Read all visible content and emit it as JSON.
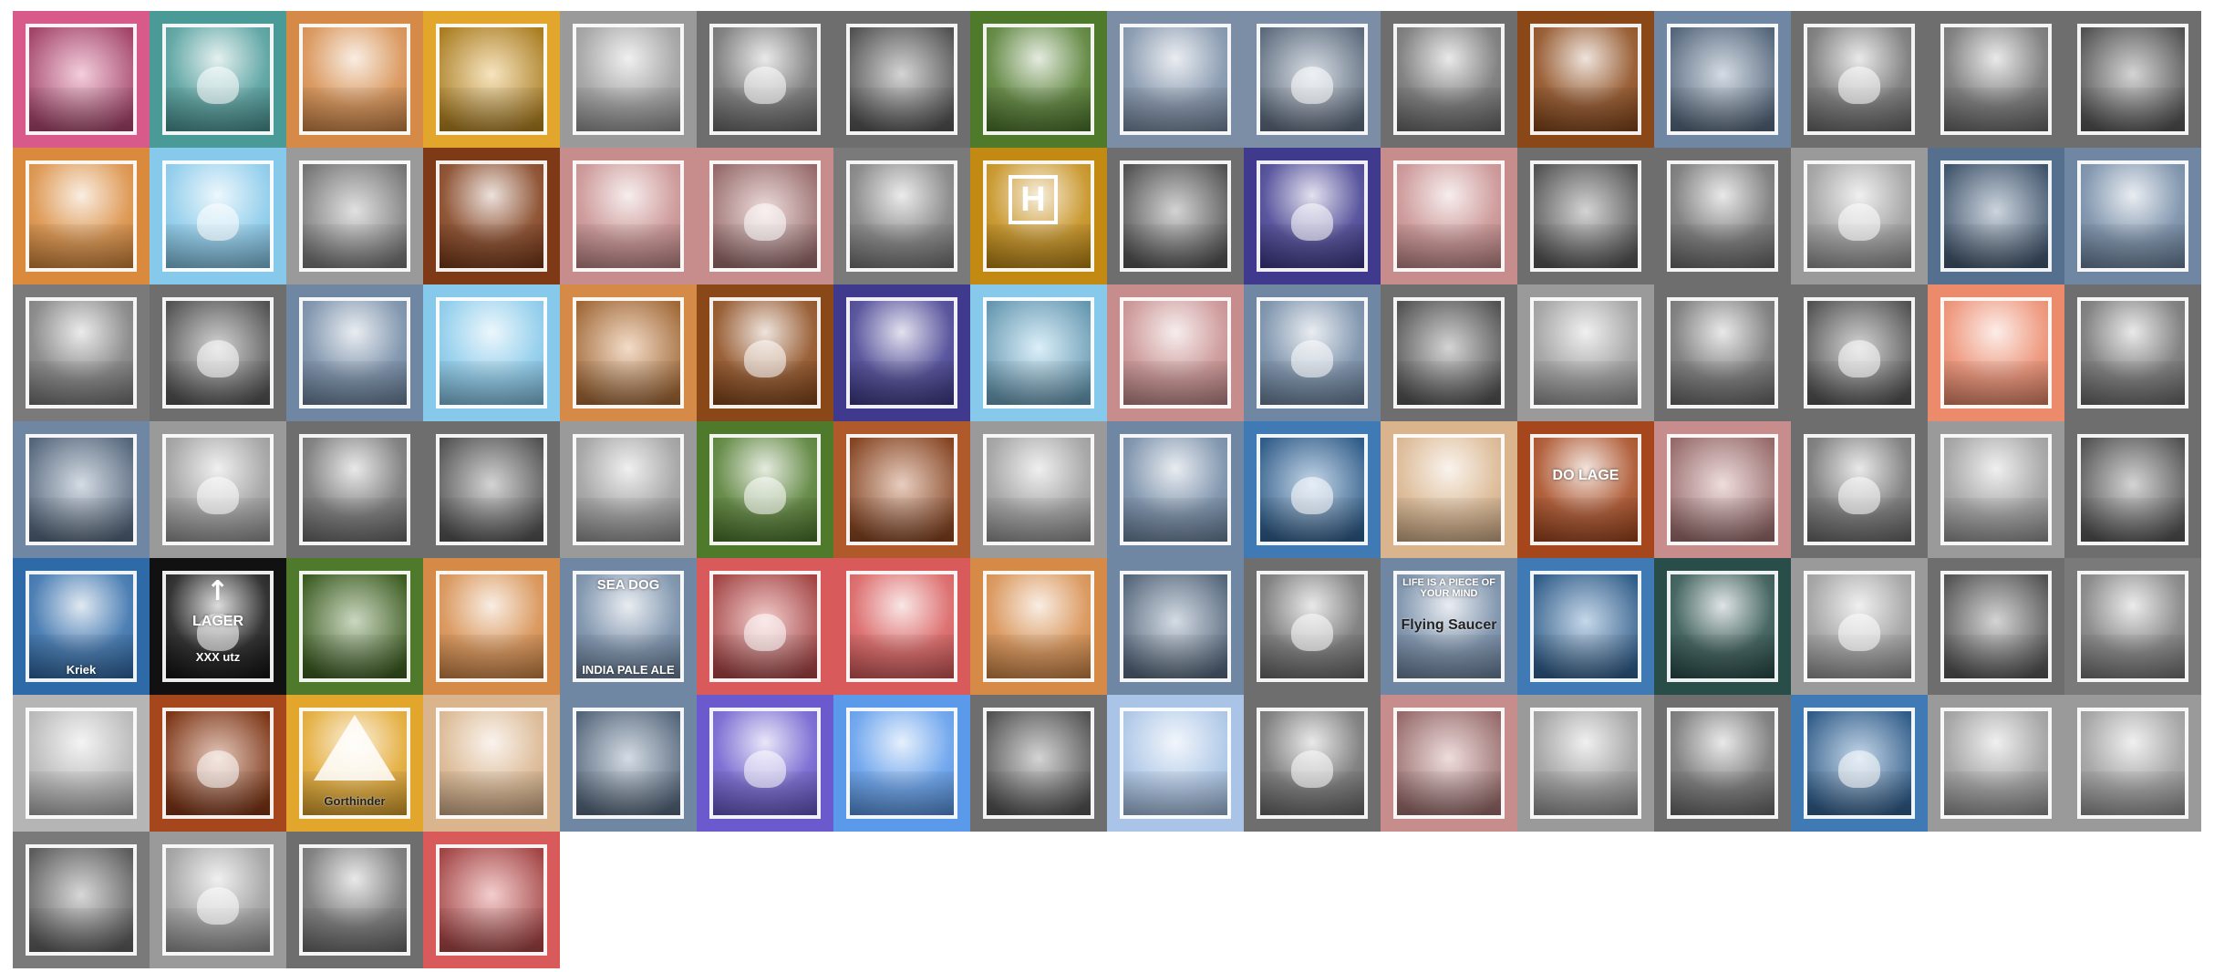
{
  "tiles": [
    {
      "bg": "#d85a8a"
    },
    {
      "bg": "#4a9a98"
    },
    {
      "bg": "#d58a48"
    },
    {
      "bg": "#e2a62c"
    },
    {
      "bg": "#9a9a9a"
    },
    {
      "bg": "#6e6e6e"
    },
    {
      "bg": "#6e6e6e"
    },
    {
      "bg": "#4f7a2c"
    },
    {
      "bg": "#7b8ea6"
    },
    {
      "bg": "#7b8ea6"
    },
    {
      "bg": "#6e6e6e"
    },
    {
      "bg": "#8a4718"
    },
    {
      "bg": "#6f87a3"
    },
    {
      "bg": "#6e6e6e"
    },
    {
      "bg": "#6e6e6e"
    },
    {
      "bg": "#6e6e6e"
    },
    {
      "bg": "#d98a3c"
    },
    {
      "bg": "#86c9ea"
    },
    {
      "bg": "#9a9a9a"
    },
    {
      "bg": "#7e3a16"
    },
    {
      "bg": "#c78c8c"
    },
    {
      "bg": "#c78c8c"
    },
    {
      "bg": "#7a7a7a"
    },
    {
      "bg": "#c28a12",
      "kind": "h-sign",
      "text": "H"
    },
    {
      "bg": "#6e6e6e"
    },
    {
      "bg": "#3f3a8e"
    },
    {
      "bg": "#c78c8c"
    },
    {
      "bg": "#6e6e6e"
    },
    {
      "bg": "#6e6e6e"
    },
    {
      "bg": "#9a9a9a"
    },
    {
      "bg": "#55708f"
    },
    {
      "bg": "#6f87a3"
    },
    {
      "bg": "#7a7a7a"
    },
    {
      "bg": "#6e6e6e"
    },
    {
      "bg": "#6f87a3"
    },
    {
      "bg": "#86c9ea"
    },
    {
      "bg": "#d58a48"
    },
    {
      "bg": "#8a4718"
    },
    {
      "bg": "#3f3a8e"
    },
    {
      "bg": "#86c9ea"
    },
    {
      "bg": "#c78c8c"
    },
    {
      "bg": "#6f87a3"
    },
    {
      "bg": "#6e6e6e"
    },
    {
      "bg": "#9a9a9a"
    },
    {
      "bg": "#6e6e6e"
    },
    {
      "bg": "#6e6e6e"
    },
    {
      "bg": "#ec8a6c"
    },
    {
      "bg": "#6e6e6e"
    },
    {
      "bg": "#6f87a3"
    },
    {
      "bg": "#9a9a9a"
    },
    {
      "bg": "#6e6e6e"
    },
    {
      "bg": "#6e6e6e"
    },
    {
      "bg": "#9a9a9a"
    },
    {
      "bg": "#4f7a2c"
    },
    {
      "bg": "#b05a2c"
    },
    {
      "bg": "#9a9a9a"
    },
    {
      "bg": "#6f87a3"
    },
    {
      "bg": "#3f7ab5"
    },
    {
      "bg": "#d9b48c"
    },
    {
      "bg": "#a5461c",
      "kind": "text-mid",
      "text": "DO LAGE"
    },
    {
      "bg": "#c78c8c"
    },
    {
      "bg": "#6e6e6e"
    },
    {
      "bg": "#9a9a9a"
    },
    {
      "bg": "#6e6e6e"
    },
    {
      "bg": "#2f6aa8",
      "kind": "text-bot",
      "text": "Kriek"
    },
    {
      "bg": "#111111",
      "kind": "lager-sign",
      "text": "LAGER",
      "text2": "XXX utz"
    },
    {
      "bg": "#4f7a2c"
    },
    {
      "bg": "#d58a48"
    },
    {
      "bg": "#6f87a3",
      "kind": "seadog",
      "text": "SEA DOG",
      "text2": "INDIA PALE ALE"
    },
    {
      "bg": "#d85a5a"
    },
    {
      "bg": "#d85a5a"
    },
    {
      "bg": "#d58a48"
    },
    {
      "bg": "#6f87a3"
    },
    {
      "bg": "#6e6e6e"
    },
    {
      "bg": "#6f87a3",
      "kind": "flying",
      "text": "LIFE IS A PIECE OF YOUR MIND",
      "text2": "Flying Saucer"
    },
    {
      "bg": "#3f7ab5"
    },
    {
      "bg": "#294e4a"
    },
    {
      "bg": "#9a9a9a"
    },
    {
      "bg": "#6e6e6e"
    },
    {
      "bg": "#7a7a7a"
    },
    {
      "bg": "#b5b5b5"
    },
    {
      "bg": "#a5461c"
    },
    {
      "bg": "#e2a62c",
      "kind": "drempel",
      "text": "Gorthinder"
    },
    {
      "bg": "#d9b48c"
    },
    {
      "bg": "#6f87a3"
    },
    {
      "bg": "#6a5acd"
    },
    {
      "bg": "#5b9aeb"
    },
    {
      "bg": "#6e6e6e"
    },
    {
      "bg": "#a9c4e6"
    },
    {
      "bg": "#6e6e6e"
    },
    {
      "bg": "#c78c8c"
    },
    {
      "bg": "#9a9a9a"
    },
    {
      "bg": "#6e6e6e"
    },
    {
      "bg": "#3f7ab5"
    },
    {
      "bg": "#9a9a9a"
    },
    {
      "bg": "#9a9a9a"
    },
    {
      "bg": "#7a7a7a"
    },
    {
      "bg": "#9a9a9a"
    },
    {
      "bg": "#6e6e6e"
    },
    {
      "bg": "#d85a5a"
    }
  ]
}
